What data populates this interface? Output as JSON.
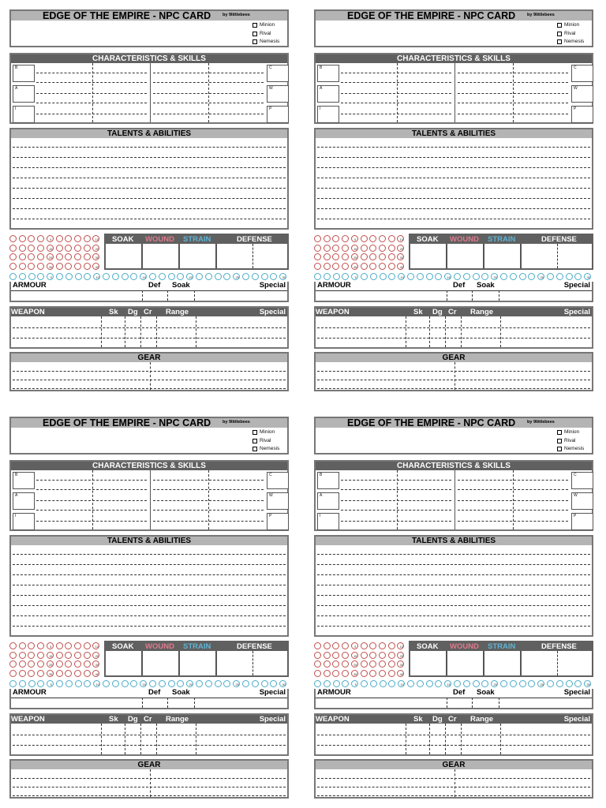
{
  "card": {
    "title": "EDGE OF THE EMPIRE - NPC CARD",
    "author": "by 9littlebees",
    "types": [
      "Minion",
      "Rival",
      "Nemesis"
    ],
    "sections": {
      "characteristics": "CHARACTERISTICS & SKILLS",
      "talents": "TALENTS & ABILITIES",
      "gear": "GEAR"
    },
    "characteristics_left": [
      "B",
      "A",
      "I"
    ],
    "characteristics_right": [
      "C",
      "W",
      "P"
    ],
    "stats": {
      "soak": "SOAK",
      "wound": "WOUND",
      "strain": "STRAIN",
      "defense": "DEFENSE"
    },
    "wound_numbers": [
      "5",
      "10",
      "15",
      "20",
      "25",
      "30",
      "35",
      "40"
    ],
    "strain_numbers": [
      "5",
      "10",
      "15",
      "20",
      "25",
      "30"
    ],
    "armour": {
      "label": "ARMOUR",
      "def": "Def",
      "soak": "Soak",
      "special": "Special"
    },
    "weapon": {
      "label": "WEAPON",
      "sk": "Sk",
      "dg": "Dg",
      "cr": "Cr",
      "range": "Range",
      "special": "Special"
    }
  },
  "colors": {
    "wound": "#e07a8c",
    "strain": "#5fb4d4",
    "bar": "#606060",
    "title_bar": "#b4b4b4"
  }
}
